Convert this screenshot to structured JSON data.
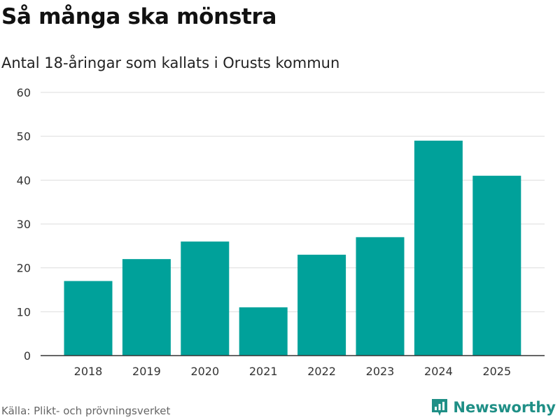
{
  "title": "Så många ska mönstra",
  "subtitle": "Antal 18-åringar som kallats i Orusts kommun",
  "source": "Källa: Plikt- och prövningsverket",
  "brand": "Newsworthy",
  "colors": {
    "bar": "#00a19a",
    "grid": "#dddddd",
    "axis": "#333333",
    "brand": "#1f8f86"
  },
  "chart_data": {
    "type": "bar",
    "title": "Så många ska mönstra",
    "subtitle": "Antal 18-åringar som kallats i Orusts kommun",
    "categories": [
      "2018",
      "2019",
      "2020",
      "2021",
      "2022",
      "2023",
      "2024",
      "2025"
    ],
    "values": [
      17,
      22,
      26,
      11,
      23,
      27,
      49,
      41
    ],
    "yticks": [
      "0",
      "10",
      "20",
      "30",
      "40",
      "50",
      "60"
    ],
    "ylim": [
      0,
      60
    ],
    "xlabel": "",
    "ylabel": "",
    "grid": true
  }
}
